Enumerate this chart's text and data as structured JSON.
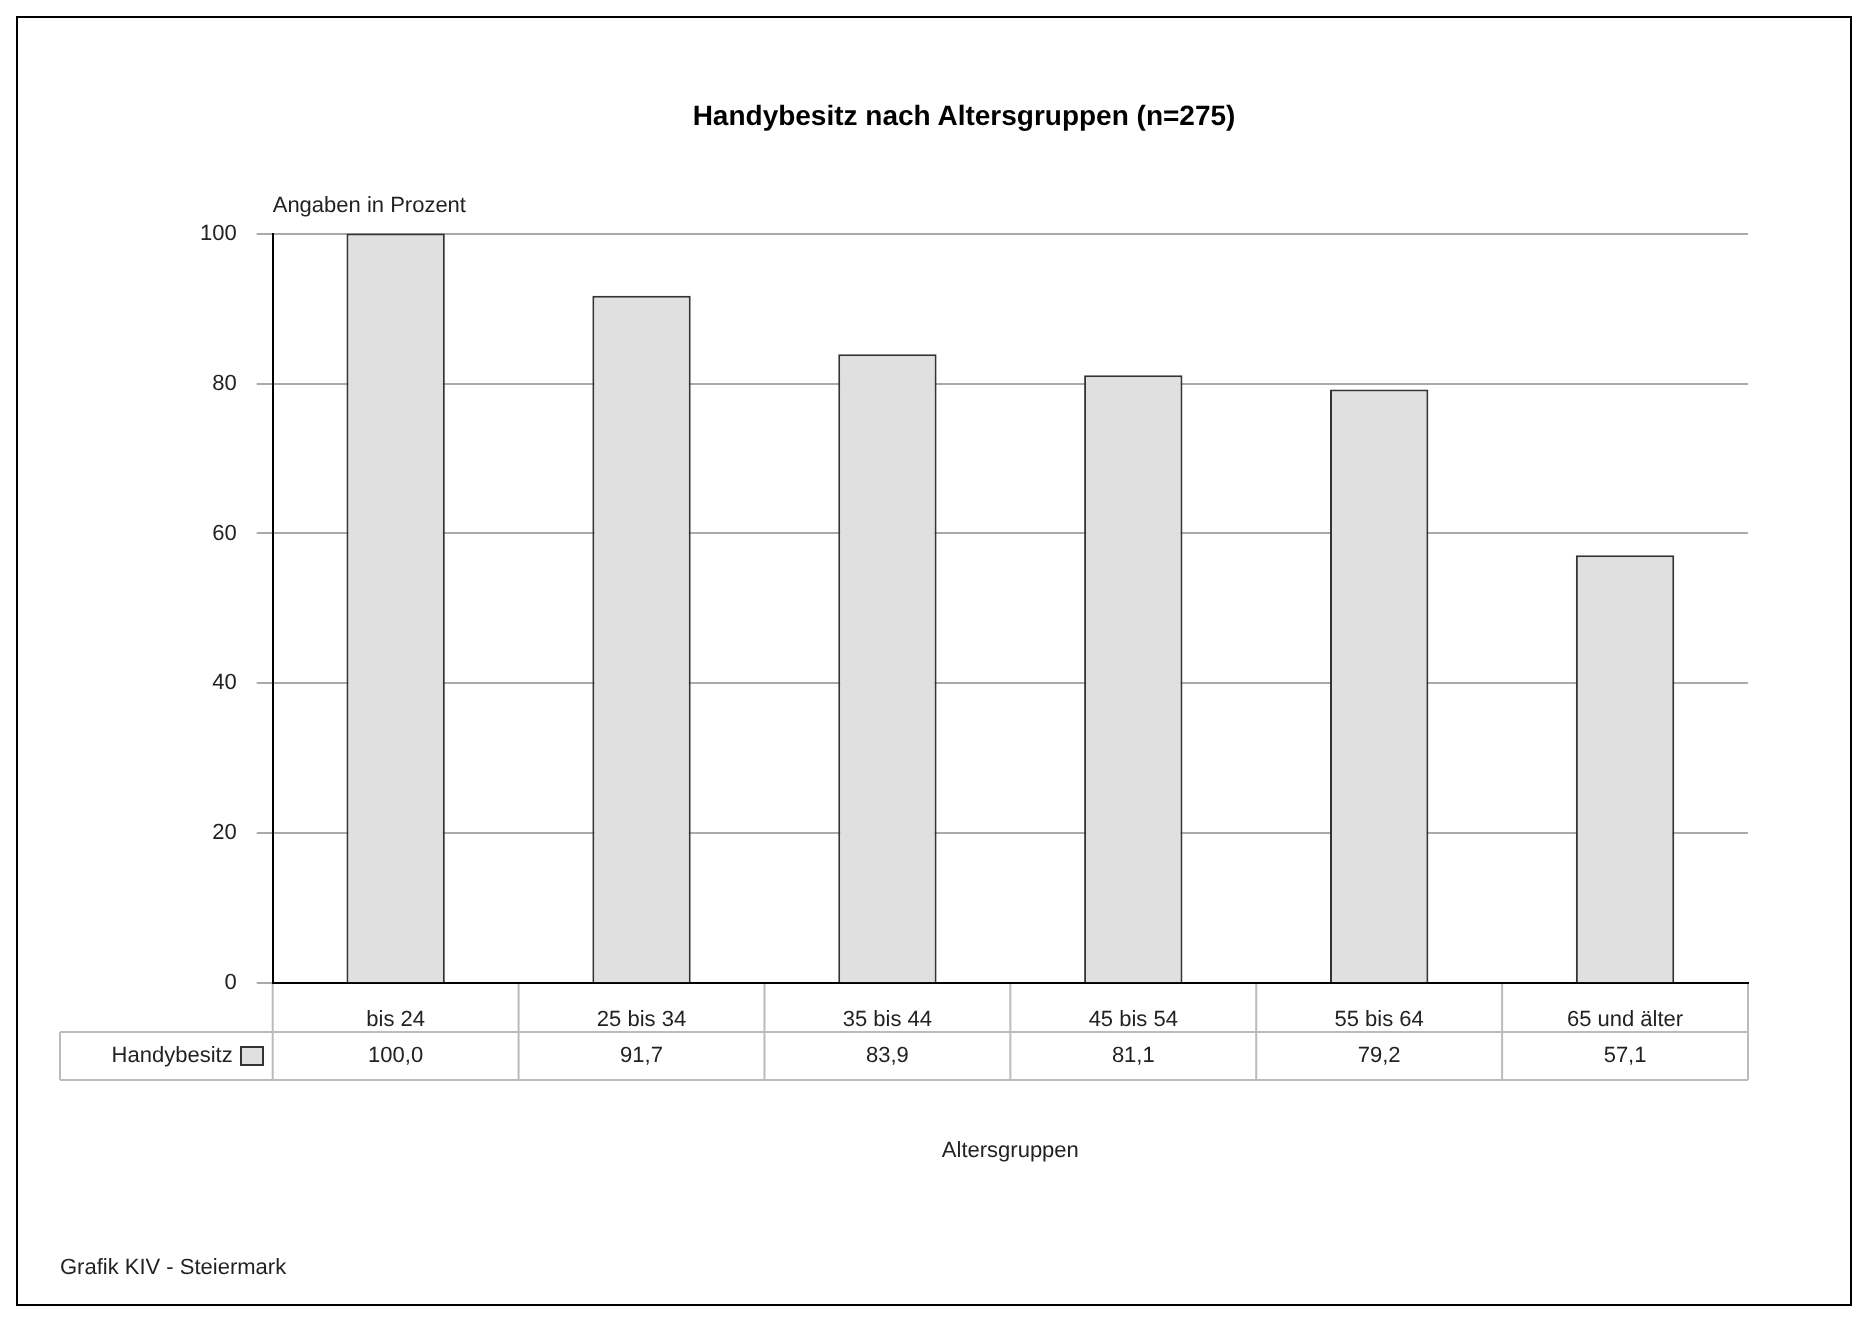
{
  "chart_data": {
    "type": "bar",
    "title": "Handybesitz nach Altersgruppen (n=275)",
    "ylabel": "Angaben in Prozent",
    "xlabel": "Altersgruppen",
    "categories": [
      "bis 24",
      "25 bis 34",
      "35 bis 44",
      "45 bis 54",
      "55 bis 64",
      "65 und älter"
    ],
    "series": [
      {
        "name": "Handybesitz",
        "color": "#e0e0e0",
        "values": [
          100.0,
          91.7,
          83.9,
          81.1,
          79.2,
          57.1
        ],
        "value_labels": [
          "100,0",
          "91,7",
          "83,9",
          "81,1",
          "79,2",
          "57,1"
        ]
      }
    ],
    "ylim": [
      0,
      100
    ],
    "yticks": [
      0,
      20,
      40,
      60,
      80,
      100
    ],
    "grid": "y",
    "legend": false,
    "annotations": [
      "Grafik KIV - Steiermark"
    ]
  }
}
